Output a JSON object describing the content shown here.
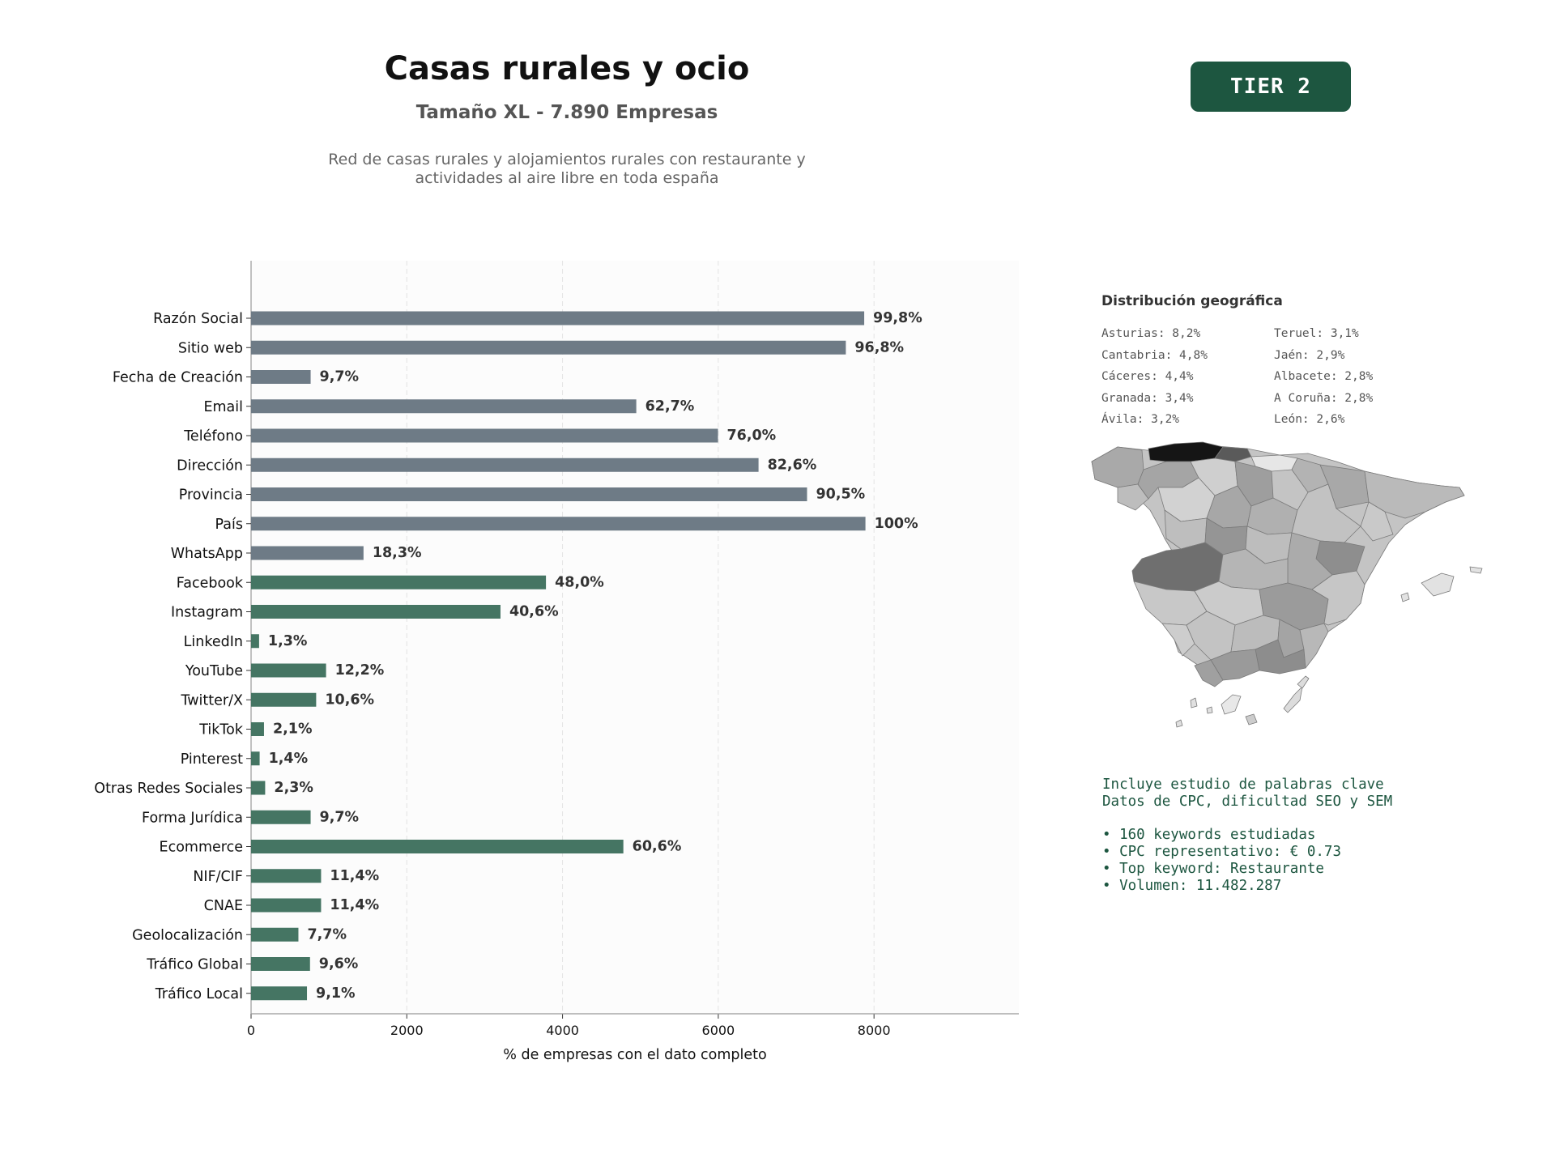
{
  "header": {
    "title": "Casas rurales y ocio",
    "subtitle": "Tamaño XL - 7.890 Empresas",
    "description_line1": "Red de casas rurales y alojamientos rurales con restaurante y",
    "description_line2": "actividades al aire libre en toda españa",
    "tier": "TIER 2"
  },
  "chart_data": {
    "type": "bar",
    "orientation": "horizontal",
    "total_companies": 7890,
    "categories": [
      "Razón Social",
      "Sitio web",
      "Fecha de Creación",
      "Email",
      "Teléfono",
      "Dirección",
      "Provincia",
      "País",
      "WhatsApp",
      "Facebook",
      "Instagram",
      "LinkedIn",
      "YouTube",
      "Twitter/X",
      "TikTok",
      "Pinterest",
      "Otras Redes Sociales",
      "Forma Jurídica",
      "Ecommerce",
      "NIF/CIF",
      "CNAE",
      "Geolocalización",
      "Tráfico Global",
      "Tráfico Local"
    ],
    "values": [
      7874,
      7638,
      765,
      4947,
      5996,
      6517,
      7140,
      7890,
      1444,
      3787,
      3203,
      103,
      963,
      836,
      166,
      110,
      181,
      765,
      4781,
      899,
      899,
      608,
      757,
      718
    ],
    "data_labels": [
      "99,8%",
      "96,8%",
      "9,7%",
      "62,7%",
      "76,0%",
      "82,6%",
      "90,5%",
      "100%",
      "18,3%",
      "48,0%",
      "40,6%",
      "1,3%",
      "12,2%",
      "10,6%",
      "2,1%",
      "1,4%",
      "2,3%",
      "9,7%",
      "60,6%",
      "11,4%",
      "11,4%",
      "7,7%",
      "9,6%",
      "9,1%"
    ],
    "groups": [
      "basic",
      "basic",
      "basic",
      "basic",
      "basic",
      "basic",
      "basic",
      "basic",
      "basic",
      "extra",
      "extra",
      "extra",
      "extra",
      "extra",
      "extra",
      "extra",
      "extra",
      "extra",
      "extra",
      "extra",
      "extra",
      "extra",
      "extra",
      "extra"
    ],
    "colors": {
      "basic": "#6e7b86",
      "extra": "#457563"
    },
    "xlim": [
      0,
      9860
    ],
    "xticks": [
      0,
      2000,
      4000,
      6000,
      8000
    ],
    "xtick_labels": [
      "0",
      "2000",
      "4000",
      "6000",
      "8000"
    ],
    "xlabel": "% de empresas con el dato completo",
    "grid": "vertical dashed"
  },
  "geo": {
    "title": "Distribución geográfica",
    "left_column": [
      "Asturias: 8,2%",
      "Cantabria: 4,8%",
      "Cáceres: 4,4%",
      "Granada: 3,4%",
      "Ávila: 3,2%"
    ],
    "right_column": [
      "Teruel: 3,1%",
      "Jaén: 2,9%",
      "Albacete: 2,8%",
      "A Coruña: 2,8%",
      "León: 2,6%"
    ]
  },
  "keywords": {
    "line1": "Incluye estudio de palabras clave",
    "line2": "Datos de CPC, dificultad SEO y SEM",
    "bullets": [
      "• 160 keywords estudiadas",
      "• CPC representativo: € 0.73",
      "• Top keyword: Restaurante",
      "• Volumen: 11.482.287"
    ]
  }
}
